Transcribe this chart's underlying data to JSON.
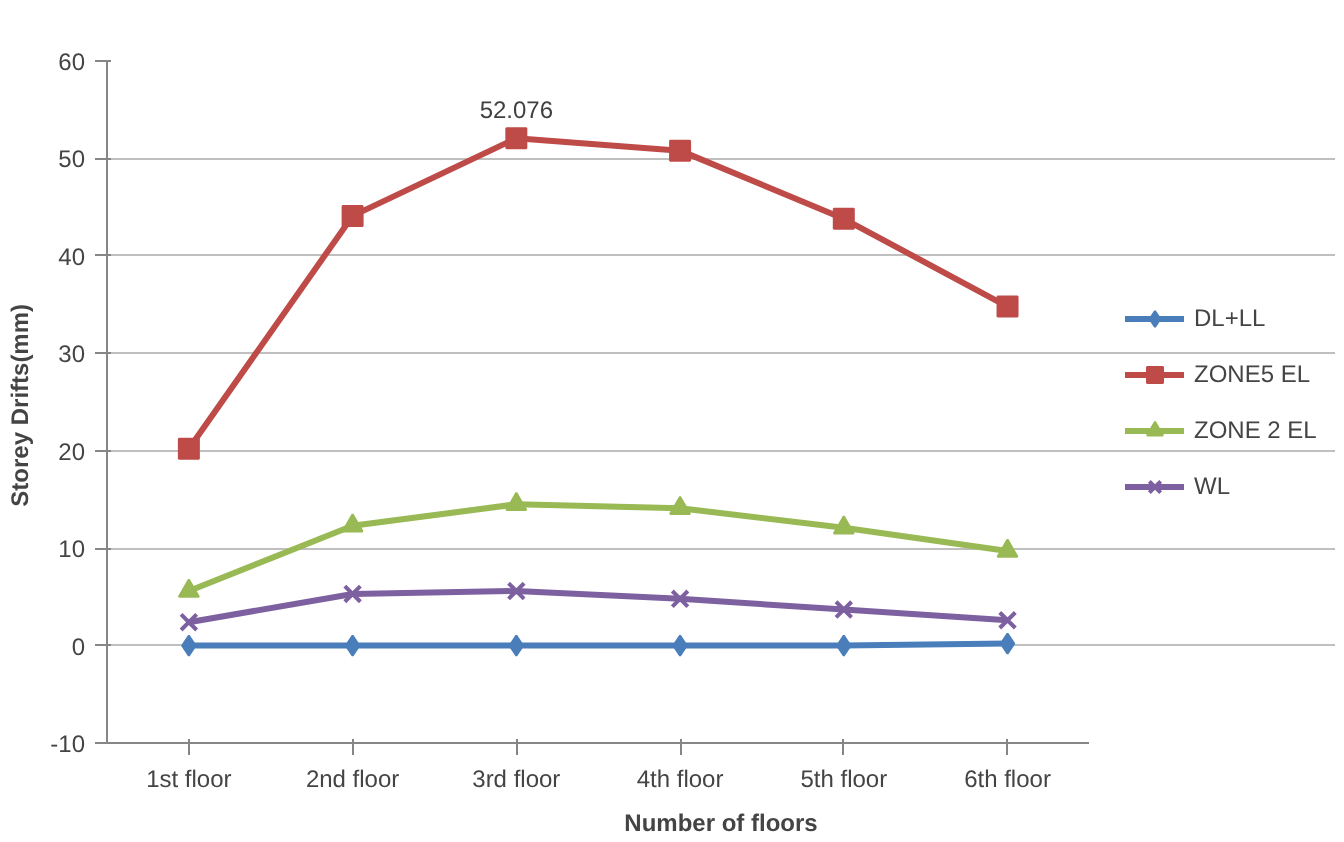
{
  "chart_data": {
    "type": "line",
    "xlabel": "Number of floors",
    "ylabel": "Storey  Drifts(mm)",
    "categories": [
      "1st floor",
      "2nd floor",
      "3rd floor",
      "4th floor",
      "5th floor",
      "6th floor"
    ],
    "series": [
      {
        "name": "DL+LL",
        "color": "#4a7ebb",
        "marker": "diamond",
        "values": [
          0,
          0,
          0,
          0,
          0,
          0.2
        ]
      },
      {
        "name": "ZONE5 EL",
        "color": "#be4b48",
        "marker": "square",
        "values": [
          20.2,
          44.1,
          52.076,
          50.8,
          43.8,
          34.8
        ],
        "value_labels": [
          null,
          null,
          "52.076",
          null,
          null,
          null
        ]
      },
      {
        "name": "ZONE 2 EL",
        "color": "#98b954",
        "marker": "triangle",
        "values": [
          5.6,
          12.3,
          14.5,
          14.1,
          12.1,
          9.7
        ]
      },
      {
        "name": "WL",
        "color": "#7d60a0",
        "marker": "cross",
        "values": [
          2.4,
          5.3,
          5.6,
          4.8,
          3.7,
          2.6
        ]
      }
    ],
    "ylim": [
      -10,
      60
    ],
    "yticks": [
      -10,
      0,
      10,
      20,
      30,
      40,
      50,
      60
    ],
    "grid": "y",
    "legend": "right"
  }
}
